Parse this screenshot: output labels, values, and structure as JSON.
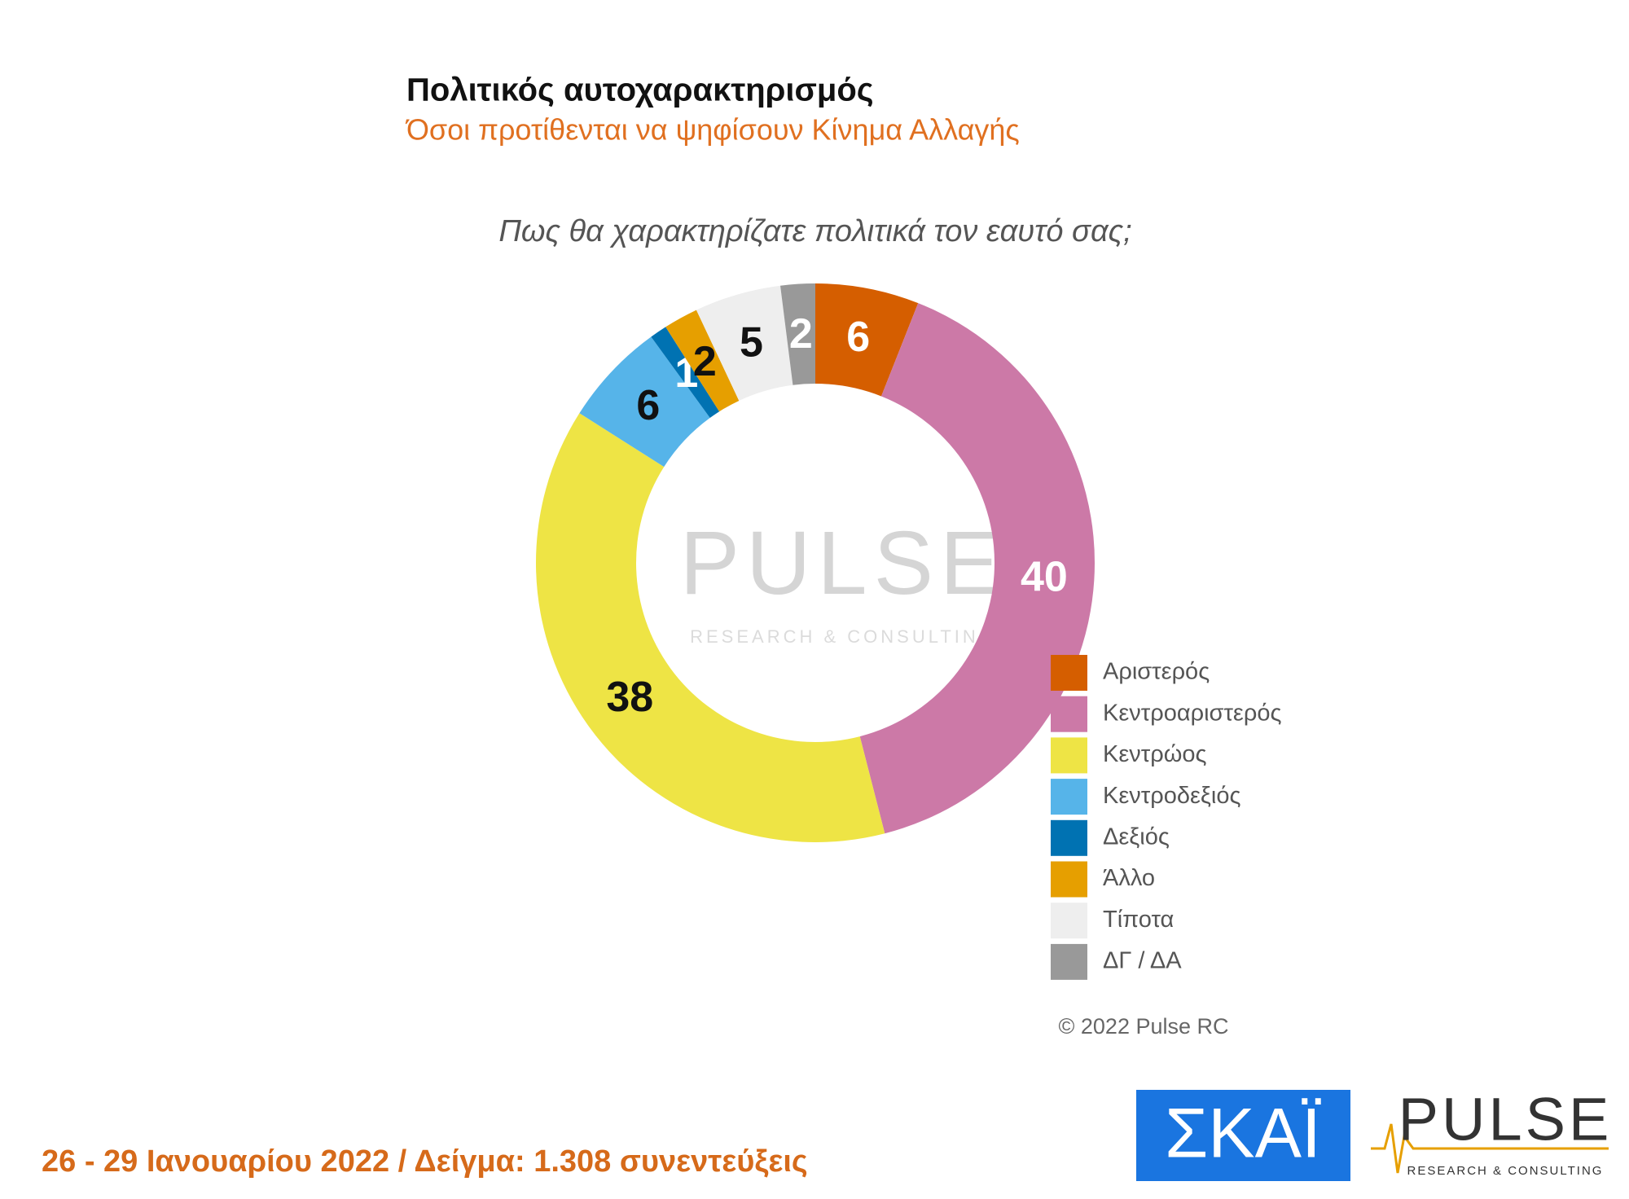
{
  "chart_data": {
    "type": "donut",
    "title": "Πολιτικός αυτοχαρακτηρισμός",
    "subtitle": "Όσοι προτίθενται να ψηφίσουν Κίνημα Αλλαγής",
    "question": "Πως θα χαρακτηρίζατε πολιτικά τον εαυτό σας;",
    "categories": [
      "Αριστερός",
      "Κεντροαριστερός",
      "Κεντρώος",
      "Κεντροδεξιός",
      "Δεξιός",
      "Άλλο",
      "Τίποτα",
      "ΔΓ / ΔΑ"
    ],
    "values": [
      6,
      40,
      38,
      6,
      1,
      2,
      5,
      2
    ],
    "colors": [
      "#d55e00",
      "#cc79a7",
      "#eee445",
      "#56b4e9",
      "#0072b2",
      "#e69f00",
      "#eeeeee",
      "#999999"
    ],
    "legend": "right"
  },
  "watermark": {
    "name": "PULSE",
    "tagline": "RESEARCH & CONSULTING"
  },
  "copyright": "© 2022 Pulse RC",
  "footer": "26 - 29 Ιανουαρίου 2022 / Δείγμα: 1.308 συνεντεύξεις",
  "logos": {
    "skai": "ΣΚΑΪ",
    "pulse": "PULSE",
    "pulse_tagline": "RESEARCH & CONSULTING"
  }
}
